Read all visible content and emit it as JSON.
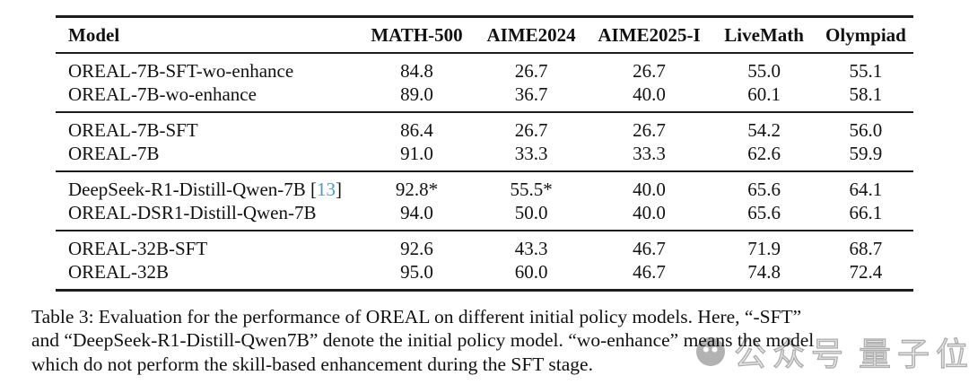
{
  "table": {
    "columns": [
      "Model",
      "MATH-500",
      "AIME2024",
      "AIME2025-I",
      "LiveMath",
      "Olympiad"
    ],
    "groups": [
      {
        "rows": [
          {
            "model": "OREAL-7B-SFT-wo-enhance",
            "values": [
              "84.8",
              "26.7",
              "26.7",
              "55.0",
              "55.1"
            ]
          },
          {
            "model": "OREAL-7B-wo-enhance",
            "values": [
              "89.0",
              "36.7",
              "40.0",
              "60.1",
              "58.1"
            ]
          }
        ]
      },
      {
        "rows": [
          {
            "model": "OREAL-7B-SFT",
            "values": [
              "86.4",
              "26.7",
              "26.7",
              "54.2",
              "56.0"
            ]
          },
          {
            "model": "OREAL-7B",
            "values": [
              "91.0",
              "33.3",
              "33.3",
              "62.6",
              "59.9"
            ]
          }
        ]
      },
      {
        "rows": [
          {
            "model": "DeepSeek-R1-Distill-Qwen-7B",
            "citation": {
              "open": "[",
              "number": "13",
              "close": "]"
            },
            "values": [
              "92.8*",
              "55.5*",
              "40.0",
              "65.6",
              "64.1"
            ]
          },
          {
            "model": "OREAL-DSR1-Distill-Qwen-7B",
            "values": [
              "94.0",
              "50.0",
              "40.0",
              "65.6",
              "66.1"
            ]
          }
        ]
      },
      {
        "rows": [
          {
            "model": "OREAL-32B-SFT",
            "values": [
              "92.6",
              "43.3",
              "46.7",
              "71.9",
              "68.7"
            ]
          },
          {
            "model": "OREAL-32B",
            "values": [
              "95.0",
              "60.0",
              "46.7",
              "74.8",
              "72.4"
            ]
          }
        ]
      }
    ],
    "citation_color": "#4a9ac4",
    "rule_color": "#1c1c1c"
  },
  "caption": {
    "lines": [
      "Table 3: Evaluation for the performance of OREAL on different initial policy models. Here, “-SFT”",
      "and “DeepSeek-R1-Distill-Qwen7B” denote the initial policy model. “wo-enhance” means the model",
      "which do not perform the skill-based enhancement during the SFT stage."
    ]
  },
  "watermark": {
    "icon": "avatar-circle-icon",
    "left_text": "公众号",
    "right_text": "量子位",
    "color": "#a5a5a5"
  }
}
